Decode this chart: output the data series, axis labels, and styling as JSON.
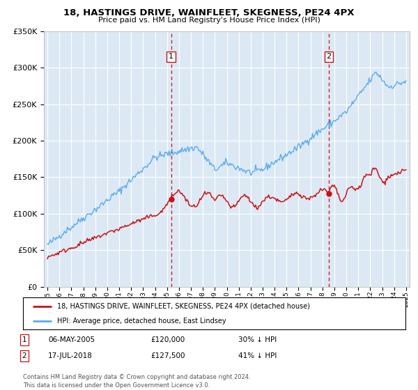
{
  "title": "18, HASTINGS DRIVE, WAINFLEET, SKEGNESS, PE24 4PX",
  "subtitle": "Price paid vs. HM Land Registry's House Price Index (HPI)",
  "legend_label_red": "18, HASTINGS DRIVE, WAINFLEET, SKEGNESS, PE24 4PX (detached house)",
  "legend_label_blue": "HPI: Average price, detached house, East Lindsey",
  "transaction1_date": "06-MAY-2005",
  "transaction1_price": "£120,000",
  "transaction1_hpi": "30% ↓ HPI",
  "transaction2_date": "17-JUL-2018",
  "transaction2_price": "£127,500",
  "transaction2_hpi": "41% ↓ HPI",
  "footer": "Contains HM Land Registry data © Crown copyright and database right 2024.\nThis data is licensed under the Open Government Licence v3.0.",
  "vline1_x": 2005.35,
  "vline2_x": 2018.54,
  "marker1_red_x": 2005.35,
  "marker1_red_y": 120000,
  "marker2_red_x": 2018.54,
  "marker2_red_y": 127500,
  "ylim": [
    0,
    350000
  ],
  "xlim_start": 1994.7,
  "xlim_end": 2025.3,
  "background_color": "#dce9f5",
  "red_color": "#cc1111",
  "blue_color": "#5aaaee",
  "vline_color": "#cc1111"
}
